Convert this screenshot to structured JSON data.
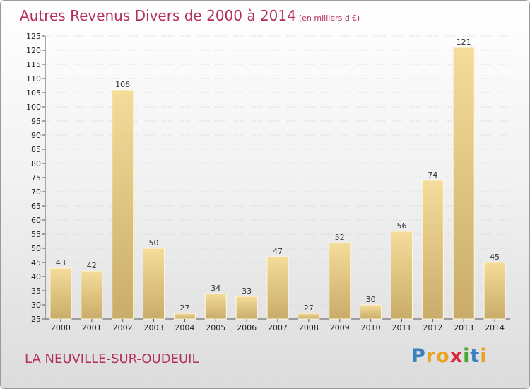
{
  "header": {
    "title": "Autres Revenus Divers de 2000 à 2014",
    "unit": "(en milliers d'€)"
  },
  "footer": {
    "commune": "LA NEUVILLE-SUR-OUDEUIL",
    "logo": "Proxiti",
    "logo_letters": [
      {
        "ch": "P",
        "color": "#3a7fc1"
      },
      {
        "ch": "r",
        "color": "#e8a320"
      },
      {
        "ch": "o",
        "color": "#e8a320"
      },
      {
        "ch": "x",
        "color": "#d7263d"
      },
      {
        "ch": "i",
        "color": "#4aa832"
      },
      {
        "ch": "t",
        "color": "#3a7fc1"
      },
      {
        "ch": "i",
        "color": "#e8a320"
      }
    ]
  },
  "colors": {
    "bar_top": "#f5dc9a",
    "bar_bottom": "#c9ac69",
    "accent": "#b3305a"
  },
  "chart_data": {
    "type": "bar",
    "categories": [
      "2000",
      "2001",
      "2002",
      "2003",
      "2004",
      "2005",
      "2006",
      "2007",
      "2008",
      "2009",
      "2010",
      "2011",
      "2012",
      "2013",
      "2014"
    ],
    "values": [
      43,
      42,
      106,
      50,
      27,
      34,
      33,
      47,
      27,
      52,
      30,
      56,
      74,
      121,
      45
    ],
    "ylim": [
      25,
      125
    ],
    "yticks": [
      25,
      30,
      35,
      40,
      45,
      50,
      55,
      60,
      65,
      70,
      75,
      80,
      85,
      90,
      95,
      100,
      105,
      110,
      115,
      120,
      125
    ],
    "grid": true
  }
}
